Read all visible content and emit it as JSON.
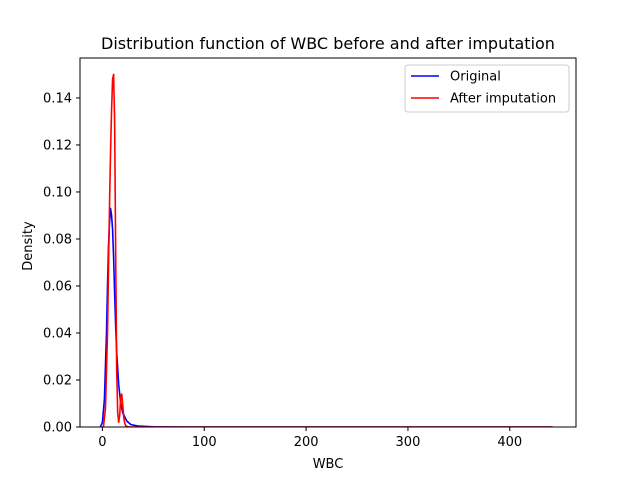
{
  "chart_data": {
    "type": "line",
    "title": "Distribution function of WBC before and after imputation",
    "xlabel": "WBC",
    "ylabel": "Density",
    "xlim": [
      -22,
      465
    ],
    "ylim": [
      0,
      0.157
    ],
    "xticks": [
      0,
      100,
      200,
      300,
      400
    ],
    "yticks": [
      0.0,
      0.02,
      0.04,
      0.06,
      0.08,
      0.1,
      0.12,
      0.14
    ],
    "ytick_labels": [
      "0.00",
      "0.02",
      "0.04",
      "0.06",
      "0.08",
      "0.10",
      "0.12",
      "0.14"
    ],
    "grid": false,
    "legend_position": "top-right",
    "series": [
      {
        "name": "Original",
        "color": "#0000ff",
        "x": [
          -2,
          0,
          2,
          4,
          5,
          6,
          7,
          8,
          9,
          10,
          11,
          12,
          13,
          14,
          16,
          18,
          20,
          24,
          28,
          35,
          50,
          80,
          150,
          250,
          350,
          442
        ],
        "y": [
          0.0,
          0.002,
          0.012,
          0.04,
          0.06,
          0.077,
          0.087,
          0.093,
          0.09,
          0.084,
          0.072,
          0.057,
          0.043,
          0.032,
          0.018,
          0.01,
          0.006,
          0.0025,
          0.001,
          0.0004,
          0.0001,
          0.0,
          0.0,
          0.0,
          0.0,
          0.0
        ]
      },
      {
        "name": "After imputation",
        "color": "#ff0000",
        "x": [
          1,
          3,
          5,
          6,
          7,
          8,
          9,
          10,
          11,
          12,
          13,
          14,
          15,
          16,
          17,
          18,
          19,
          20,
          21,
          22,
          23,
          25,
          28,
          35,
          50,
          100,
          200,
          300,
          442
        ],
        "y": [
          0.0,
          0.008,
          0.04,
          0.068,
          0.095,
          0.117,
          0.135,
          0.148,
          0.15,
          0.13,
          0.075,
          0.025,
          0.006,
          0.002,
          0.005,
          0.013,
          0.014,
          0.009,
          0.004,
          0.0015,
          0.0005,
          0.0001,
          0.0,
          0.0,
          0.0,
          0.0,
          0.0,
          0.0,
          0.0
        ]
      }
    ]
  },
  "colors": {
    "axes": "#000000",
    "background": "#ffffff"
  }
}
